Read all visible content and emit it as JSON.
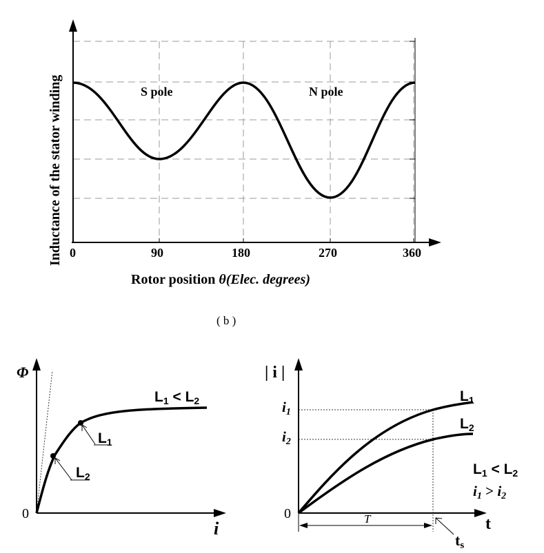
{
  "top": {
    "y_axis_label": "Inductance of the stator winding",
    "x_axis_label_main": "Rotor position ",
    "x_axis_label_theta": "θ",
    "x_axis_label_paren": "(Elec. degrees)",
    "ticks": [
      "0",
      "90",
      "180",
      "270",
      "360"
    ],
    "s_pole": "S pole",
    "n_pole": "N pole",
    "caption": "( b )"
  },
  "bottom_left": {
    "y_axis_label": "Φ",
    "x_axis_label": "i",
    "origin": "0",
    "relation_L1": "L",
    "relation_L1_sub": "1",
    "relation_lt": " < ",
    "relation_L2": "L",
    "relation_L2_sub": "2",
    "point_L1": "L",
    "point_L1_sub": "1",
    "point_L2": "L",
    "point_L2_sub": "2"
  },
  "bottom_right": {
    "y_axis_label": "| i |",
    "x_axis_label": "t",
    "origin": "0",
    "i1_label": "i",
    "i1_sub": "1",
    "i2_label": "i",
    "i2_sub": "2",
    "curve_L1": "L",
    "curve_L1_sub": "1",
    "curve_L2": "L",
    "curve_L2_sub": "2",
    "T_label": "T",
    "ts_label": "t",
    "ts_sub": "s",
    "rel1_a": "L",
    "rel1_a_sub": "1",
    "rel1_op": " < ",
    "rel1_b": "L",
    "rel1_b_sub": "2",
    "rel2_a": "i",
    "rel2_a_sub": "1",
    "rel2_op": " > ",
    "rel2_b": "i",
    "rel2_b_sub": "2"
  }
}
